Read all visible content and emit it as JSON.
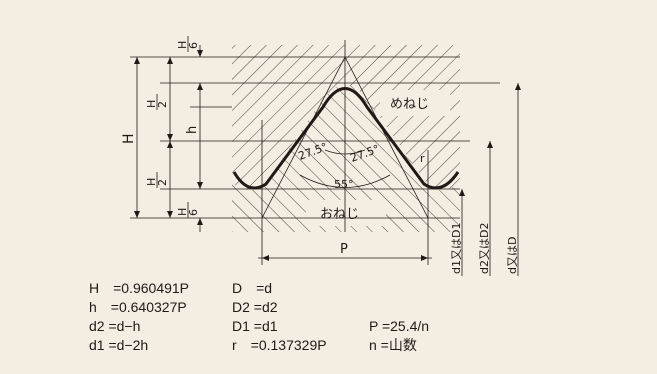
{
  "diagram": {
    "h_top_label": "H/6",
    "h_top_num": "H",
    "h_top_den": "6",
    "h2_upper_num": "H",
    "h2_upper_den": "2",
    "h2_lower_num": "H",
    "h2_lower_den": "2",
    "h_bottom_num": "H",
    "h_bottom_den": "6",
    "H_label": "H",
    "h_label": "h",
    "angle_left": "27.5°",
    "angle_right": "27.5°",
    "angle_total": "55°",
    "r_label": "r",
    "female_label": "めねじ",
    "male_label": "おねじ",
    "pitch_label": "P",
    "d1_label": "d1又はD1",
    "d2_label": "d2又はD2",
    "d_label": "d又はD"
  },
  "formulas": {
    "row1": {
      "left": "H　=0.960491P",
      "mid": "D　=d",
      "right": ""
    },
    "row2": {
      "left": "h　=0.640327P",
      "mid": "D2 =d2",
      "right": ""
    },
    "row3": {
      "left": "d2 =d−h",
      "mid": "D1 =d1",
      "right": "P =25.4/n"
    },
    "row4": {
      "left": "d1 =d−2h",
      "mid": "r　=0.137329P",
      "right": "n =山数"
    }
  }
}
